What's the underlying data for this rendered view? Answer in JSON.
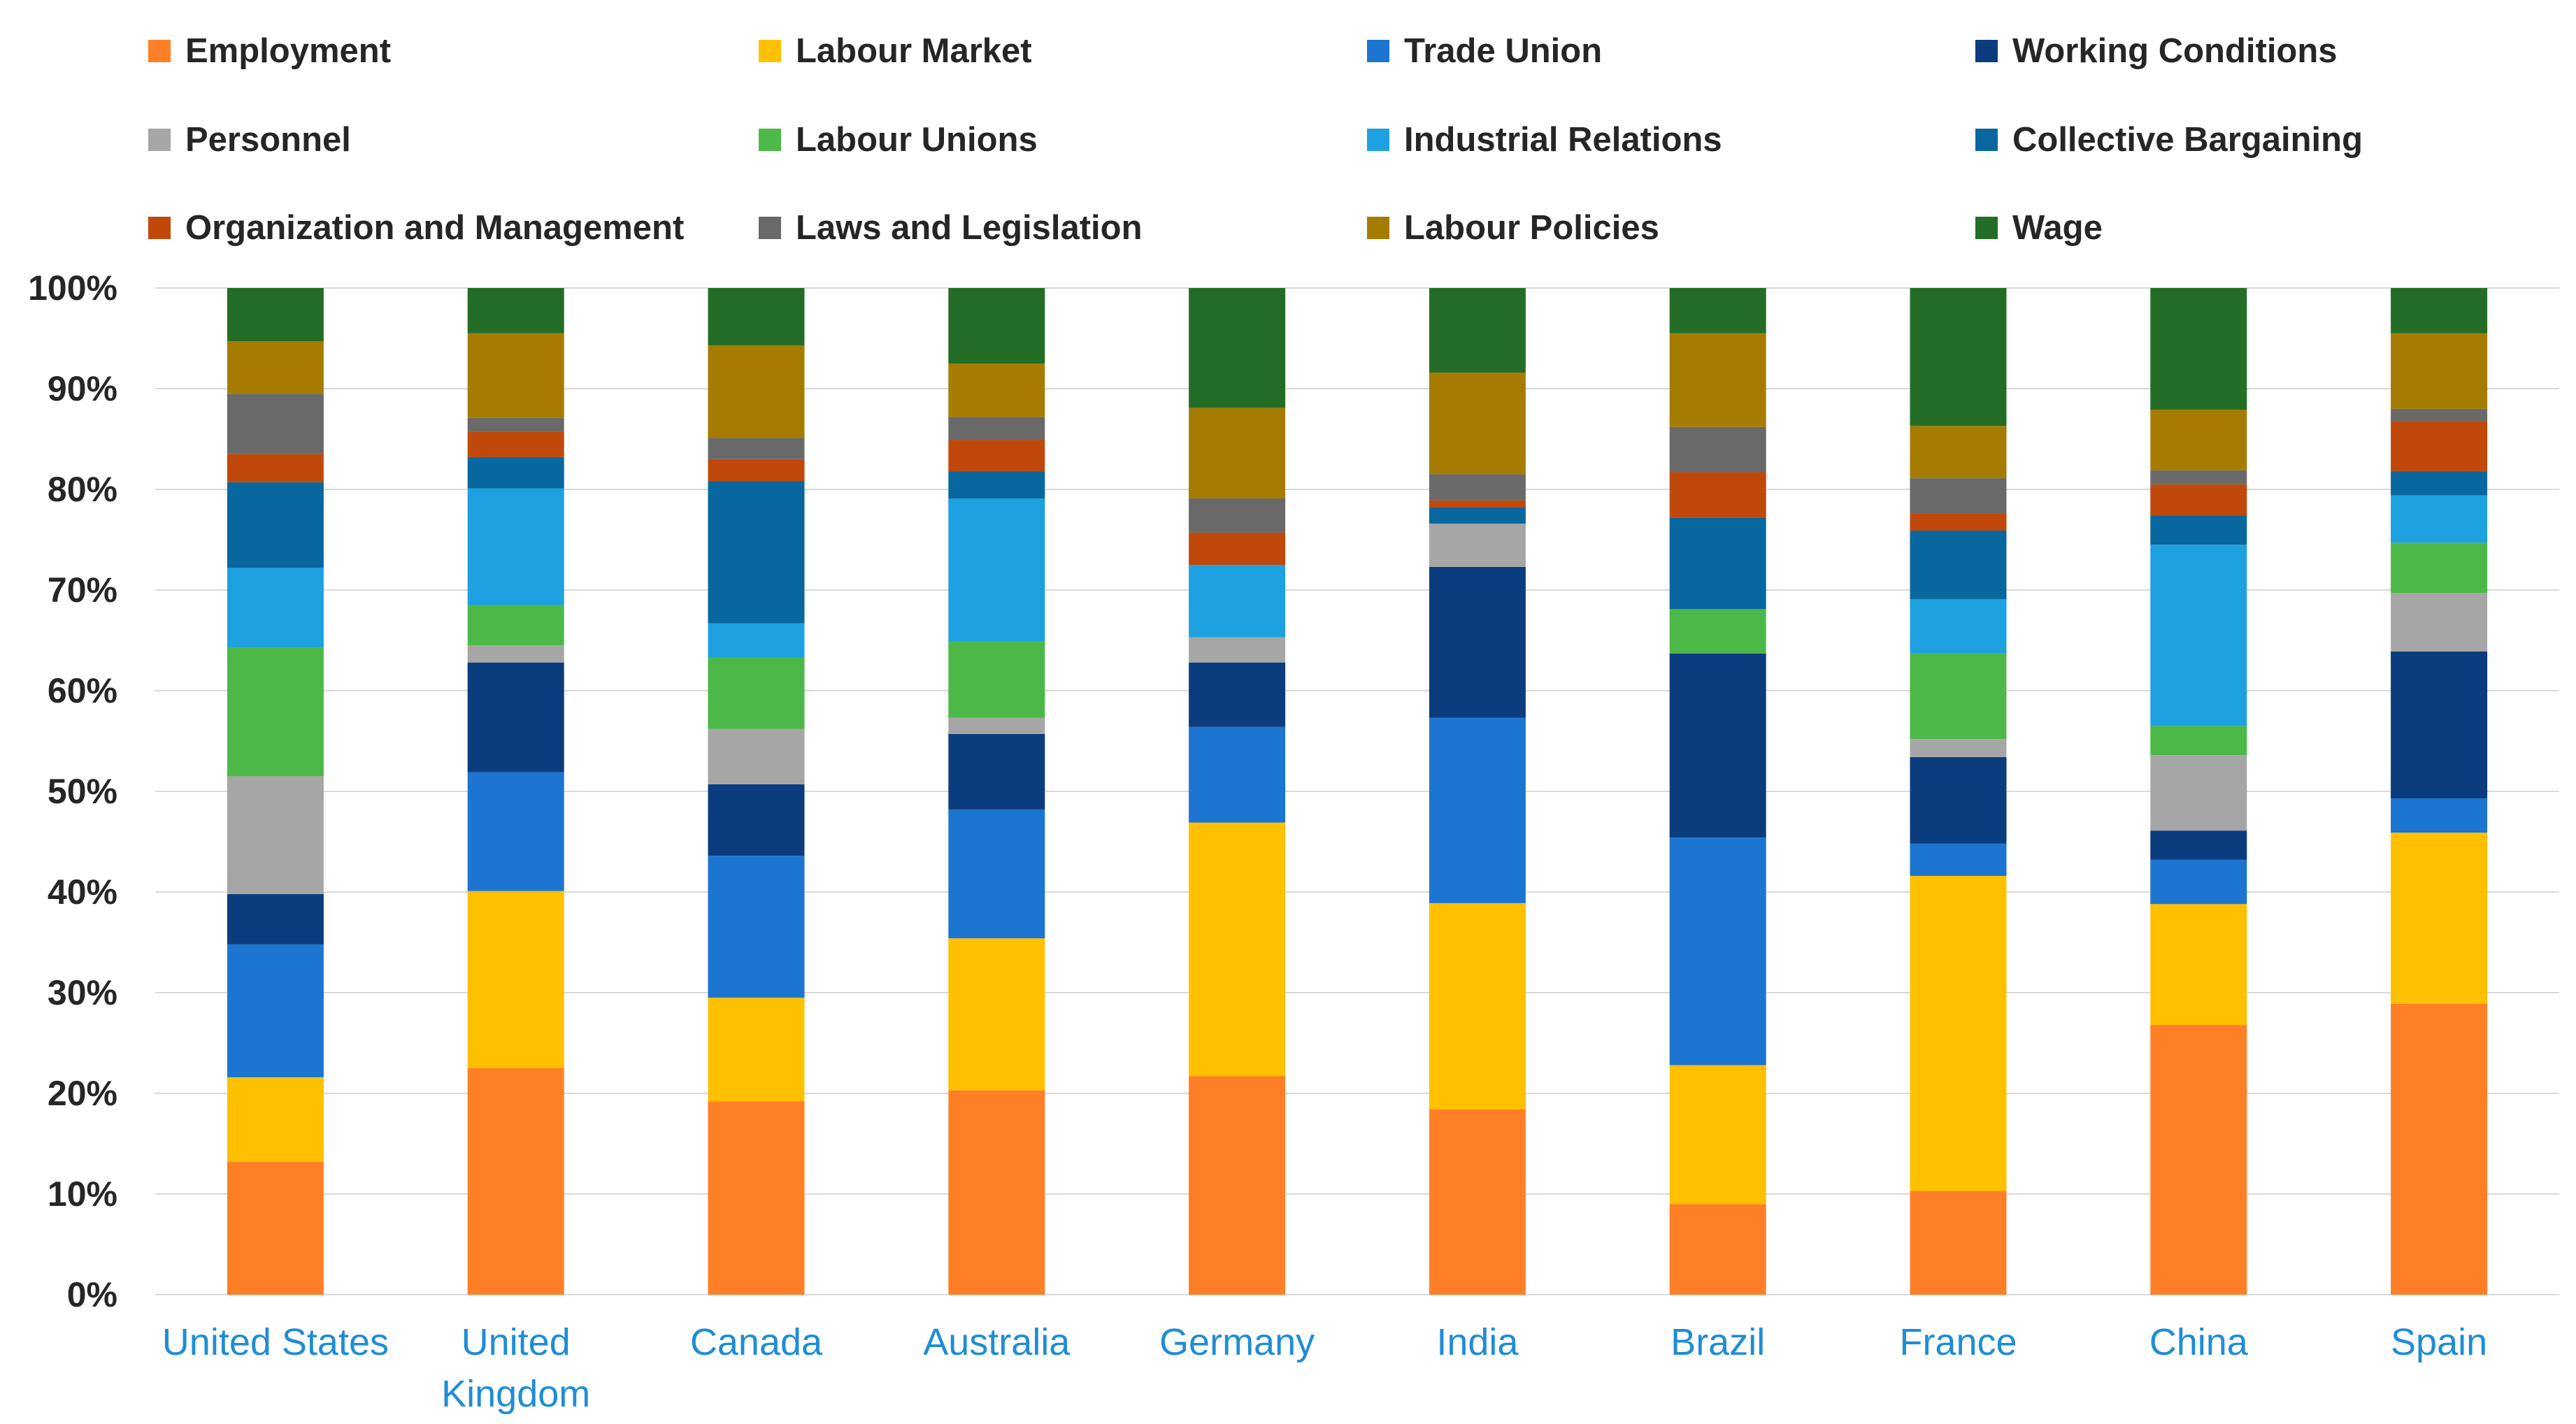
{
  "chart_data": {
    "type": "bar",
    "stacked": true,
    "percent": true,
    "categories": [
      "United States",
      "United Kingdom",
      "Canada",
      "Australia",
      "Germany",
      "India",
      "Brazil",
      "France",
      "China",
      "Spain"
    ],
    "series": [
      {
        "name": "Employment",
        "color": "#ff7f27",
        "values": [
          13.2,
          22.5,
          19.2,
          20.3,
          21.7,
          18.4,
          9.0,
          10.3,
          26.8,
          28.9
        ]
      },
      {
        "name": "Labour Market",
        "color": "#ffc000",
        "values": [
          8.4,
          17.6,
          10.3,
          15.1,
          25.2,
          20.5,
          13.8,
          31.3,
          12.0,
          17.0
        ]
      },
      {
        "name": "Trade Union",
        "color": "#1c75d0",
        "values": [
          13.2,
          11.8,
          14.1,
          12.8,
          9.5,
          18.4,
          22.6,
          3.2,
          4.4,
          3.4
        ]
      },
      {
        "name": "Working Conditions",
        "color": "#0b3c7d",
        "values": [
          5.0,
          10.9,
          7.1,
          7.5,
          6.4,
          15.0,
          18.3,
          8.6,
          2.9,
          14.6
        ]
      },
      {
        "name": "Personnel",
        "color": "#a6a6a6",
        "values": [
          11.7,
          1.7,
          5.5,
          1.6,
          2.5,
          4.3,
          0.0,
          1.8,
          7.5,
          5.8
        ]
      },
      {
        "name": "Labour Unions",
        "color": "#4cb848",
        "values": [
          12.8,
          4.0,
          7.1,
          7.6,
          0.0,
          0.0,
          4.4,
          8.5,
          2.9,
          5.0
        ]
      },
      {
        "name": "Industrial Relations",
        "color": "#1ea1e0",
        "values": [
          7.9,
          11.6,
          3.4,
          14.2,
          7.2,
          0.0,
          0.0,
          5.4,
          18.0,
          4.7
        ]
      },
      {
        "name": "Collective Bargaining",
        "color": "#07679e",
        "values": [
          8.5,
          3.1,
          14.1,
          2.7,
          0.0,
          1.6,
          9.1,
          6.8,
          2.9,
          2.4
        ]
      },
      {
        "name": "Organization and Management",
        "color": "#c0480b",
        "values": [
          2.8,
          2.5,
          2.2,
          3.1,
          3.2,
          0.7,
          4.5,
          1.7,
          3.1,
          5.0
        ]
      },
      {
        "name": "Laws and Legislation",
        "color": "#696969",
        "values": [
          6.0,
          1.4,
          2.1,
          2.3,
          3.4,
          2.6,
          4.5,
          3.5,
          1.4,
          1.2
        ]
      },
      {
        "name": "Labour Policies",
        "color": "#a57c00",
        "values": [
          5.2,
          8.4,
          9.2,
          5.3,
          9.0,
          10.1,
          9.3,
          5.2,
          6.0,
          7.5
        ]
      },
      {
        "name": "Wage",
        "color": "#236d26",
        "values": [
          5.3,
          4.5,
          5.7,
          7.5,
          11.9,
          8.4,
          4.5,
          13.7,
          12.1,
          4.5
        ]
      }
    ],
    "y_ticks": [
      "0%",
      "10%",
      "20%",
      "30%",
      "40%",
      "50%",
      "60%",
      "70%",
      "80%",
      "90%",
      "100%"
    ],
    "ylim": [
      0,
      100
    ],
    "grid": true,
    "legend": "top",
    "title": "",
    "xlabel": "",
    "ylabel": ""
  }
}
